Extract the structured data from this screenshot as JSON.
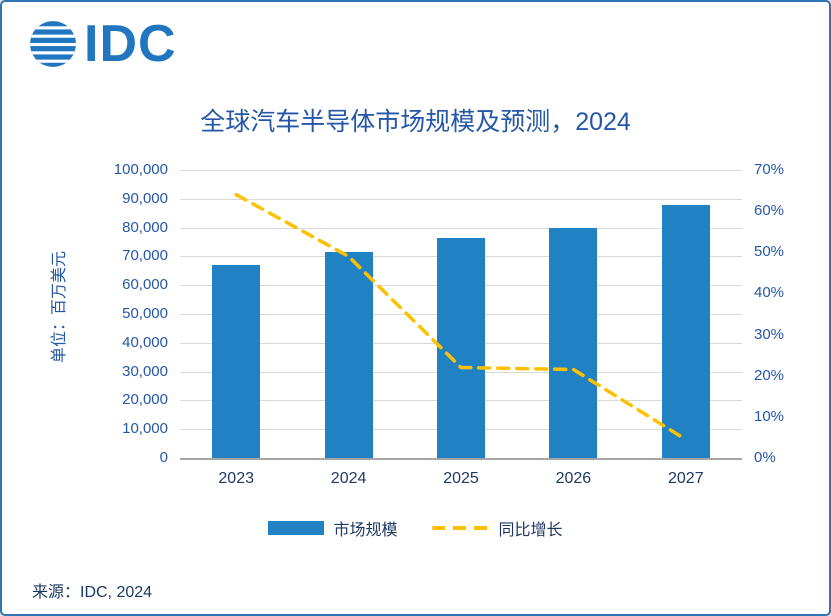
{
  "logo": {
    "text": "IDC"
  },
  "title": "全球汽车半导体市场规模及预测，2024",
  "y_axis": {
    "title": "单位：百万美元",
    "left_ticks": [
      "100,000",
      "90,000",
      "80,000",
      "70,000",
      "60,000",
      "50,000",
      "40,000",
      "30,000",
      "20,000",
      "10,000",
      "0"
    ],
    "right_ticks": [
      "70%",
      "60%",
      "50%",
      "40%",
      "30%",
      "20%",
      "10%",
      "0%"
    ]
  },
  "legend": {
    "bar_label": "市场规模",
    "line_label": "同比增长"
  },
  "source": "来源：IDC, 2024",
  "colors": {
    "bar": "#2182C3",
    "line": "#FFC000",
    "title_text": "#2457A7",
    "axis_text": "#2457A7",
    "year_text": "#1F3864",
    "border": "#2E74B5",
    "grid": "#D9D9D9",
    "logo_blue": "#2176C0"
  },
  "chart_data": {
    "type": "bar+line",
    "title": "全球汽车半导体市场规模及预测，2024",
    "categories": [
      "2023",
      "2024",
      "2025",
      "2026",
      "2027"
    ],
    "series": [
      {
        "name": "市场规模",
        "type": "bar",
        "axis": "left",
        "values": [
          67000,
          71500,
          76500,
          80000,
          88000
        ]
      },
      {
        "name": "同比增长",
        "type": "line",
        "axis": "right",
        "values": [
          64,
          49,
          22,
          21.5,
          4.5
        ]
      }
    ],
    "left_axis": {
      "label": "单位：百万美元",
      "min": 0,
      "max": 100000,
      "step": 10000
    },
    "right_axis": {
      "label": "同比增长",
      "min": 0,
      "max": 70,
      "step": 10,
      "unit": "%"
    },
    "grid": true,
    "legend_position": "bottom"
  }
}
